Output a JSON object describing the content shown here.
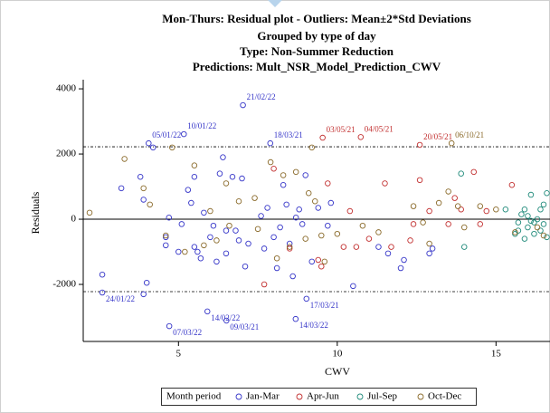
{
  "chart_data": {
    "type": "scatter",
    "title": "Mon-Thurs: Residual plot - Outliers: Mean±2*Std Deviations",
    "subtitles": [
      "Grouped by type of day",
      "Type: Non-Summer Reduction",
      "Predictions: Mult_NSR_Model_Prediction_CWV"
    ],
    "x_label": "CWV",
    "y_label": "Residuals",
    "legend_title": "Month period",
    "xlim": [
      2,
      16.7
    ],
    "ylim": [
      -3750,
      4280
    ],
    "xticks": [
      5,
      10,
      15
    ],
    "yticks": [
      -2000,
      0,
      2000,
      4000
    ],
    "zero_line": 0,
    "limit_lines": [
      2222,
      -2222
    ],
    "series": [
      {
        "name": "Jan-Mar",
        "color": "#3535c8",
        "x": [
          7.03,
          5.17,
          4.06,
          7.89,
          2.6,
          5.91,
          4.71,
          6.51,
          8.69,
          9.03,
          2.6,
          3.2,
          3.8,
          3.9,
          4.0,
          3.9,
          4.2,
          4.6,
          4.6,
          4.7,
          5.0,
          5.1,
          5.3,
          5.4,
          5.5,
          5.5,
          5.6,
          5.7,
          5.8,
          6.0,
          6.1,
          6.2,
          6.3,
          6.4,
          6.5,
          6.5,
          6.7,
          6.8,
          6.9,
          7.0,
          7.1,
          7.2,
          7.6,
          7.7,
          7.8,
          8.0,
          8.1,
          8.2,
          8.3,
          8.4,
          8.5,
          8.6,
          8.7,
          8.8,
          8.9,
          9.0,
          9.2,
          9.4,
          9.7,
          9.8,
          10.5,
          12.0,
          11.6,
          11.3,
          12.9,
          13.0,
          12.1
        ],
        "y": [
          3500,
          2610,
          2330,
          2330,
          -2250,
          -2830,
          -3280,
          -3110,
          -3060,
          -2440,
          -1700,
          950,
          1300,
          600,
          -1950,
          -2300,
          2200,
          -550,
          -800,
          50,
          -1000,
          -150,
          900,
          500,
          -850,
          1300,
          -1000,
          -1200,
          200,
          -550,
          -200,
          -1300,
          1400,
          1900,
          -1050,
          -350,
          1300,
          -350,
          -650,
          1250,
          -1450,
          -750,
          100,
          -900,
          350,
          -550,
          -1500,
          -250,
          1050,
          450,
          -750,
          -1750,
          50,
          300,
          -150,
          1350,
          -1300,
          350,
          -200,
          500,
          -2050,
          -1500,
          -1050,
          -850,
          -1050,
          -900,
          -1250
        ]
      },
      {
        "name": "Apr-Jun",
        "color": "#c23030",
        "x": [
          9.54,
          10.74,
          12.6,
          7.7,
          8.0,
          8.5,
          9.4,
          9.5,
          9.7,
          10.2,
          10.4,
          10.6,
          11.0,
          11.5,
          12.3,
          12.6,
          12.9,
          13.5,
          13.9,
          14.3,
          14.7,
          15.5,
          13.7,
          12.4,
          11.7,
          14.5
        ],
        "y": [
          2500,
          2520,
          2280,
          -2000,
          1550,
          -900,
          -1250,
          -1450,
          1100,
          -850,
          250,
          -850,
          -600,
          1100,
          -650,
          1200,
          250,
          -150,
          300,
          1450,
          250,
          1050,
          650,
          -150,
          -850,
          -150
        ]
      },
      {
        "name": "Jul-Sep",
        "color": "#1f8a7a",
        "x": [
          13.9,
          14.0,
          15.3,
          15.6,
          15.7,
          15.8,
          15.9,
          16.0,
          16.1,
          16.2,
          16.3,
          16.4,
          16.5,
          16.6,
          16.0,
          16.2,
          16.4,
          16.6,
          15.7,
          16.1,
          16.5,
          15.9
        ],
        "y": [
          1400,
          -850,
          300,
          -450,
          -350,
          150,
          -600,
          -250,
          750,
          -100,
          0,
          -350,
          -150,
          800,
          100,
          -450,
          300,
          -550,
          -100,
          -50,
          450,
          300
        ]
      },
      {
        "name": "Oct-Dec",
        "color": "#8a6a2a",
        "x": [
          13.6,
          2.2,
          3.3,
          3.9,
          4.1,
          4.8,
          4.6,
          5.2,
          5.5,
          5.8,
          6.0,
          6.2,
          6.5,
          6.6,
          6.9,
          7.4,
          7.5,
          7.9,
          8.1,
          8.3,
          8.5,
          8.7,
          9.0,
          9.1,
          9.2,
          9.3,
          9.5,
          9.6,
          10.0,
          10.8,
          11.3,
          12.4,
          12.7,
          12.9,
          13.2,
          13.5,
          13.8,
          14.0,
          14.5,
          15.0,
          15.6,
          16.3,
          16.5
        ],
        "y": [
          2330,
          200,
          1850,
          950,
          450,
          2200,
          -500,
          -1000,
          1650,
          -800,
          250,
          -650,
          1100,
          -200,
          550,
          650,
          -300,
          1750,
          -1200,
          1350,
          -850,
          1450,
          -600,
          800,
          2200,
          550,
          -500,
          -1300,
          -450,
          -200,
          -400,
          400,
          -100,
          -750,
          500,
          850,
          400,
          -250,
          400,
          300,
          -400,
          -250,
          -500
        ]
      }
    ],
    "annotations": [
      {
        "text": "21/02/22",
        "x": 7.03,
        "y": 3500,
        "color": "#3535c8"
      },
      {
        "text": "10/01/22",
        "x": 5.17,
        "y": 2610,
        "color": "#3535c8"
      },
      {
        "text": "05/01/22",
        "x": 4.06,
        "y": 2330,
        "color": "#3535c8"
      },
      {
        "text": "18/03/21",
        "x": 7.89,
        "y": 2330,
        "color": "#3535c8"
      },
      {
        "text": "03/05/21",
        "x": 9.54,
        "y": 2500,
        "color": "#c23030"
      },
      {
        "text": "04/05/21",
        "x": 10.74,
        "y": 2520,
        "color": "#c23030"
      },
      {
        "text": "20/05/21",
        "x": 12.6,
        "y": 2280,
        "color": "#c23030"
      },
      {
        "text": "06/10/21",
        "x": 13.6,
        "y": 2330,
        "color": "#8a6a2a"
      },
      {
        "text": "24/01/22",
        "x": 2.6,
        "y": -2250,
        "color": "#3535c8"
      },
      {
        "text": "14/02/22",
        "x": 5.91,
        "y": -2830,
        "color": "#3535c8"
      },
      {
        "text": "07/03/22",
        "x": 4.71,
        "y": -3280,
        "color": "#3535c8"
      },
      {
        "text": "09/03/21",
        "x": 6.51,
        "y": -3110,
        "color": "#3535c8"
      },
      {
        "text": "14/03/22",
        "x": 8.69,
        "y": -3060,
        "color": "#3535c8"
      },
      {
        "text": "17/03/21",
        "x": 9.03,
        "y": -2440,
        "color": "#3535c8"
      }
    ]
  }
}
